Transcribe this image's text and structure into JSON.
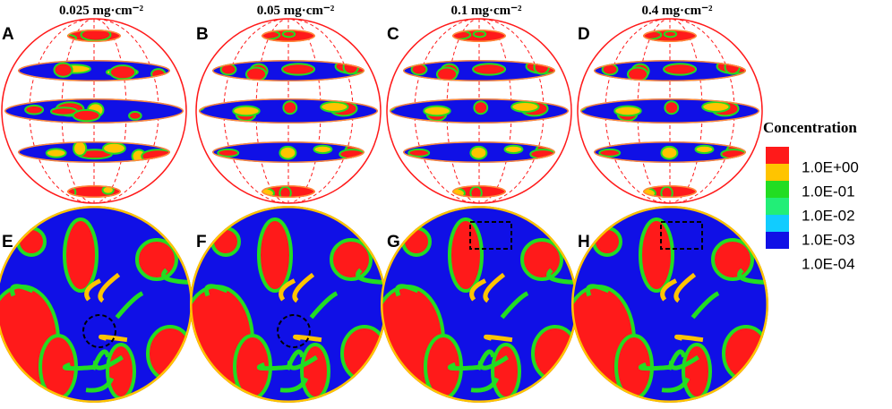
{
  "columns": [
    {
      "title": "0.025 mg·cm⁻²",
      "top_label": "A",
      "bottom_label": "E"
    },
    {
      "title": "0.05 mg·cm⁻²",
      "top_label": "B",
      "bottom_label": "F"
    },
    {
      "title": "0.1 mg·cm⁻²",
      "top_label": "C",
      "bottom_label": "G"
    },
    {
      "title": "0.4 mg·cm⁻²",
      "top_label": "D",
      "bottom_label": "H"
    }
  ],
  "legend": {
    "title": "Concentration",
    "colors": [
      "#ff1a1a",
      "#ffc400",
      "#22dd22",
      "#22ee77",
      "#11ccff",
      "#1010e6"
    ],
    "labels": [
      "1.0E+00",
      "1.0E-01",
      "1.0E-02",
      "1.0E-03",
      "1.0E-04"
    ]
  }
}
